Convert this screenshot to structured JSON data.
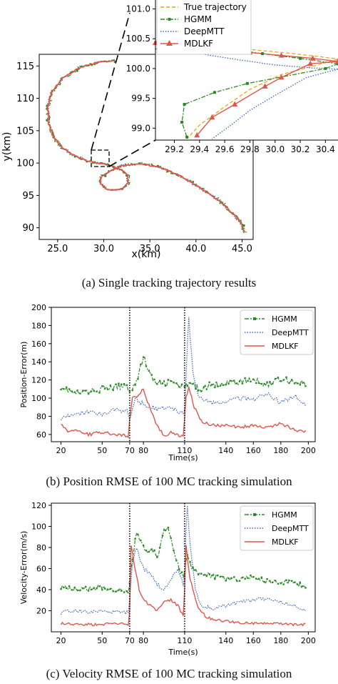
{
  "captions": [
    "(a)  Single tracking trajectory results",
    "(b)  Position RMSE of 100 MC tracking simulation",
    "(c)  Velocity RMSE of 100 MC tracking simulation"
  ],
  "colors": {
    "true": "#e6a817",
    "hgmm": "#2a8a26",
    "deepmtt": "#3a64c4",
    "mdlkf": "#e0564b"
  },
  "chart_data": [
    {
      "type": "line",
      "xlabel": "x(km)",
      "ylabel": "y(km)",
      "xlim": [
        23,
        46.2
      ],
      "ylim": [
        88.2,
        116.8
      ],
      "xticks": [
        25.0,
        30.0,
        35.0,
        40.0,
        45.0
      ],
      "xtick_labels": [
        "25.0",
        "30.0",
        "35.0",
        "40.0",
        "45.0"
      ],
      "yticks": [
        90,
        95,
        100,
        105,
        110,
        115
      ],
      "ytick_labels": [
        "90",
        "95",
        "100",
        "105",
        "110",
        "115"
      ],
      "grid": false,
      "trajectory_waypoints": {
        "x": [
          31.1,
          29.5,
          27.5,
          25.6,
          24.4,
          23.9,
          24.0,
          24.5,
          25.5,
          26.7,
          28.0,
          29.4,
          30.8,
          32.0,
          32.6,
          32.6,
          32.1,
          31.2,
          30.2,
          29.6,
          29.8,
          30.6,
          32.0,
          34.0,
          36.0,
          38.0,
          40.0,
          41.5,
          43.0,
          44.2,
          45.0,
          45.3
        ],
        "y": [
          115.8,
          115.6,
          114.8,
          113.2,
          111.0,
          108.6,
          106.3,
          104.2,
          102.4,
          101.2,
          100.4,
          100.0,
          99.6,
          98.9,
          98.0,
          96.9,
          96.1,
          95.8,
          96.0,
          96.9,
          97.9,
          98.7,
          99.6,
          99.9,
          99.4,
          98.2,
          96.6,
          95.2,
          93.6,
          91.9,
          90.5,
          89.3
        ]
      },
      "inset": {
        "series": [
          "True trajectory",
          "HGMM",
          "DeepMTT",
          "MDLKF"
        ],
        "xlim": [
          29.05,
          30.5
        ],
        "ylim": [
          98.8,
          101.15
        ],
        "xticks": [
          29.2,
          29.4,
          29.6,
          29.8,
          30.0,
          30.2,
          30.4
        ],
        "xtick_labels": [
          "29.2",
          "29.4",
          "29.6",
          "29.8",
          "30.0",
          "30.2",
          "30.4"
        ],
        "yticks": [
          99.0,
          99.5,
          100.0,
          100.5,
          101.0
        ],
        "ytick_labels": [
          "99.0",
          "99.5",
          "100.0",
          "100.5",
          "101.0"
        ],
        "true": {
          "x": [
            29.05,
            29.4,
            29.8,
            30.1,
            30.35,
            30.5
          ],
          "y": [
            100.46,
            100.4,
            100.32,
            100.26,
            100.2,
            100.16
          ]
        },
        "hgmm": {
          "x": [
            29.05,
            29.3,
            29.6,
            29.9,
            30.2,
            30.5
          ],
          "y": [
            100.43,
            100.39,
            100.34,
            100.25,
            100.17,
            100.08
          ]
        },
        "deepmtt": {
          "x": [
            29.05,
            29.4,
            29.7,
            30.0,
            30.3,
            30.5
          ],
          "y": [
            100.33,
            100.25,
            100.15,
            100.06,
            100.01,
            99.99
          ]
        },
        "mdlkf": {
          "x": [
            29.05,
            29.3,
            29.55,
            29.8,
            30.05,
            30.3,
            30.5
          ],
          "y": [
            100.43,
            100.37,
            100.32,
            100.27,
            100.22,
            100.17,
            100.12
          ]
        },
        "true_return": {
          "x": [
            30.5,
            30.3,
            30.05,
            29.8,
            29.6,
            29.4,
            29.3
          ],
          "y": [
            100.16,
            100.04,
            99.9,
            99.65,
            99.36,
            99.05,
            98.82
          ]
        },
        "hgmm_return": {
          "x": [
            30.5,
            30.4,
            29.78,
            29.52,
            29.28,
            29.26,
            29.3
          ],
          "y": [
            100.08,
            100.0,
            99.75,
            99.6,
            99.4,
            99.1,
            98.85
          ]
        },
        "deepmtt_return": {
          "x": [
            30.5,
            30.25,
            30.0,
            29.8,
            29.65,
            29.5
          ],
          "y": [
            99.99,
            99.85,
            99.55,
            99.3,
            99.05,
            98.82
          ]
        },
        "mdlkf_return": {
          "x": [
            30.5,
            30.28,
            30.05,
            29.92,
            29.68,
            29.5,
            29.38
          ],
          "y": [
            100.12,
            100.08,
            99.85,
            99.7,
            99.4,
            99.18,
            98.88
          ]
        }
      }
    },
    {
      "type": "line",
      "xlabel": "Time(s)",
      "ylabel": "Position-Error(m)",
      "xlim": [
        13,
        205
      ],
      "ylim": [
        52,
        200
      ],
      "xticks": [
        20,
        50,
        70,
        80,
        110,
        140,
        160,
        180,
        200
      ],
      "xtick_labels": [
        "20",
        "50",
        "70",
        "80",
        "110",
        "140",
        "160",
        "180",
        "200"
      ],
      "yticks": [
        60,
        80,
        100,
        120,
        140,
        160,
        180,
        200
      ],
      "ytick_labels": [
        "60",
        "80",
        "100",
        "120",
        "140",
        "160",
        "180",
        "200"
      ],
      "vlines": [
        70,
        110
      ],
      "series": [
        {
          "name": "HGMM",
          "x": [
            20,
            30,
            40,
            50,
            60,
            68,
            70,
            75,
            80,
            85,
            90,
            100,
            108,
            110,
            115,
            120,
            130,
            140,
            150,
            160,
            170,
            180,
            190,
            198
          ],
          "values": [
            113,
            105,
            107,
            110,
            112,
            114,
            108,
            118,
            146,
            125,
            115,
            118,
            112,
            112,
            116,
            110,
            115,
            117,
            118,
            120,
            115,
            122,
            118,
            116
          ]
        },
        {
          "name": "DeepMTT",
          "x": [
            20,
            30,
            40,
            50,
            60,
            68,
            70,
            74,
            78,
            82,
            90,
            100,
            108,
            110,
            112,
            113,
            116,
            120,
            130,
            140,
            150,
            160,
            170,
            180,
            190,
            198
          ],
          "values": [
            78,
            82,
            85,
            82,
            88,
            85,
            78,
            100,
            95,
            92,
            88,
            90,
            83,
            85,
            160,
            188,
            130,
            100,
            95,
            97,
            100,
            98,
            105,
            95,
            103,
            92
          ]
        },
        {
          "name": "MDLKF",
          "x": [
            20,
            25,
            30,
            40,
            50,
            60,
            69,
            70,
            72,
            76,
            80,
            85,
            90,
            95,
            100,
            105,
            109,
            110,
            111,
            113,
            117,
            122,
            130,
            140,
            150,
            160,
            170,
            180,
            190,
            198
          ],
          "values": [
            73,
            62,
            65,
            60,
            62,
            60,
            58,
            75,
            100,
            103,
            110,
            88,
            70,
            58,
            62,
            60,
            57,
            80,
            100,
            112,
            90,
            75,
            70,
            70,
            68,
            70,
            68,
            72,
            65,
            64
          ]
        }
      ],
      "legend": "top-right"
    },
    {
      "type": "line",
      "xlabel": "Time(s)",
      "ylabel": "Velocity-Error(m/s)",
      "xlim": [
        13,
        205
      ],
      "ylim": [
        0,
        122
      ],
      "xticks": [
        20,
        50,
        70,
        80,
        110,
        140,
        160,
        180,
        200
      ],
      "xtick_labels": [
        "20",
        "50",
        "70",
        "80",
        "110",
        "140",
        "160",
        "180",
        "200"
      ],
      "yticks": [
        20,
        40,
        60,
        80,
        100,
        120
      ],
      "ytick_labels": [
        "20",
        "40",
        "60",
        "80",
        "100",
        "120"
      ],
      "vlines": [
        70,
        110
      ],
      "series": [
        {
          "name": "HGMM",
          "x": [
            20,
            30,
            40,
            50,
            60,
            69,
            70,
            72,
            75,
            78,
            82,
            86,
            90,
            95,
            98,
            102,
            106,
            109,
            110,
            112,
            115,
            120,
            130,
            140,
            150,
            160,
            170,
            180,
            190,
            198
          ],
          "values": [
            43,
            40,
            41,
            42,
            40,
            38,
            45,
            70,
            95,
            85,
            75,
            80,
            70,
            95,
            98,
            78,
            60,
            52,
            58,
            75,
            60,
            55,
            53,
            50,
            50,
            52,
            48,
            47,
            46,
            43
          ]
        },
        {
          "name": "DeepMTT",
          "x": [
            20,
            30,
            40,
            50,
            60,
            69,
            70,
            72,
            75,
            80,
            85,
            90,
            95,
            100,
            105,
            109,
            110,
            111,
            112,
            113,
            115,
            118,
            122,
            130,
            140,
            150,
            160,
            170,
            180,
            190,
            198
          ],
          "values": [
            18,
            20,
            19,
            20,
            19,
            18,
            30,
            65,
            80,
            60,
            55,
            45,
            40,
            50,
            60,
            45,
            55,
            100,
            118,
            100,
            70,
            40,
            25,
            22,
            25,
            28,
            30,
            32,
            28,
            25,
            20
          ]
        },
        {
          "name": "MDLKF",
          "x": [
            20,
            30,
            40,
            50,
            60,
            69,
            70,
            71,
            72,
            74,
            77,
            80,
            85,
            90,
            95,
            100,
            105,
            109,
            110,
            111,
            112,
            114,
            117,
            120,
            125,
            130,
            140,
            150,
            160,
            170,
            180,
            190,
            198
          ],
          "values": [
            8,
            7,
            7,
            7,
            8,
            7,
            20,
            82,
            75,
            60,
            40,
            30,
            25,
            20,
            28,
            30,
            25,
            15,
            40,
            82,
            70,
            50,
            35,
            22,
            15,
            12,
            10,
            9,
            8,
            8,
            8,
            7,
            7
          ]
        }
      ],
      "legend": "top-right"
    }
  ]
}
